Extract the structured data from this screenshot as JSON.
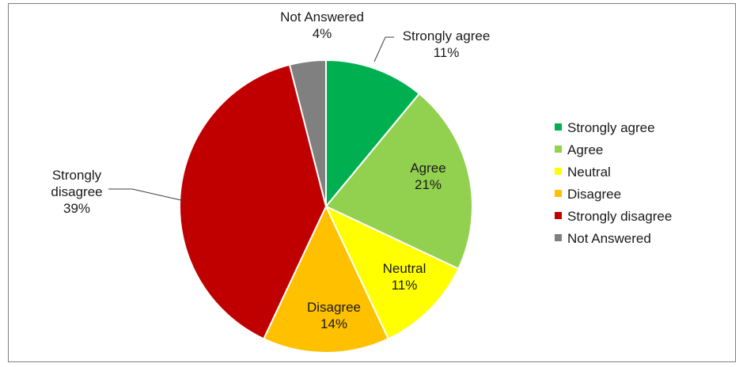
{
  "chart_data": {
    "type": "pie",
    "title": "",
    "slices": [
      {
        "label": "Strongly agree",
        "pct_label": "11%",
        "value": 11,
        "color": "#00b050"
      },
      {
        "label": "Agree",
        "pct_label": "21%",
        "value": 21,
        "color": "#92d050"
      },
      {
        "label": "Neutral",
        "pct_label": "11%",
        "value": 11,
        "color": "#ffff00"
      },
      {
        "label": "Disagree",
        "pct_label": "14%",
        "value": 14,
        "color": "#ffc000"
      },
      {
        "label": "Strongly disagree",
        "pct_label": "39%",
        "value": 39,
        "color": "#c00000"
      },
      {
        "label": "Not Answered",
        "pct_label": "4%",
        "value": 4,
        "color": "#808080"
      }
    ],
    "data_labels": [
      {
        "lines": [
          "Strongly agree",
          "11%"
        ]
      },
      {
        "lines": [
          "Agree",
          "21%"
        ]
      },
      {
        "lines": [
          "Neutral",
          "11%"
        ]
      },
      {
        "lines": [
          "Disagree",
          "14%"
        ]
      },
      {
        "lines": [
          "Strongly",
          "disagree",
          "39%"
        ]
      },
      {
        "lines": [
          "Not Answered",
          "4%"
        ]
      }
    ],
    "legend": {
      "placement": "right",
      "entries": [
        "Strongly agree",
        "Agree",
        "Neutral",
        "Disagree",
        "Strongly disagree",
        "Not Answered"
      ]
    }
  }
}
